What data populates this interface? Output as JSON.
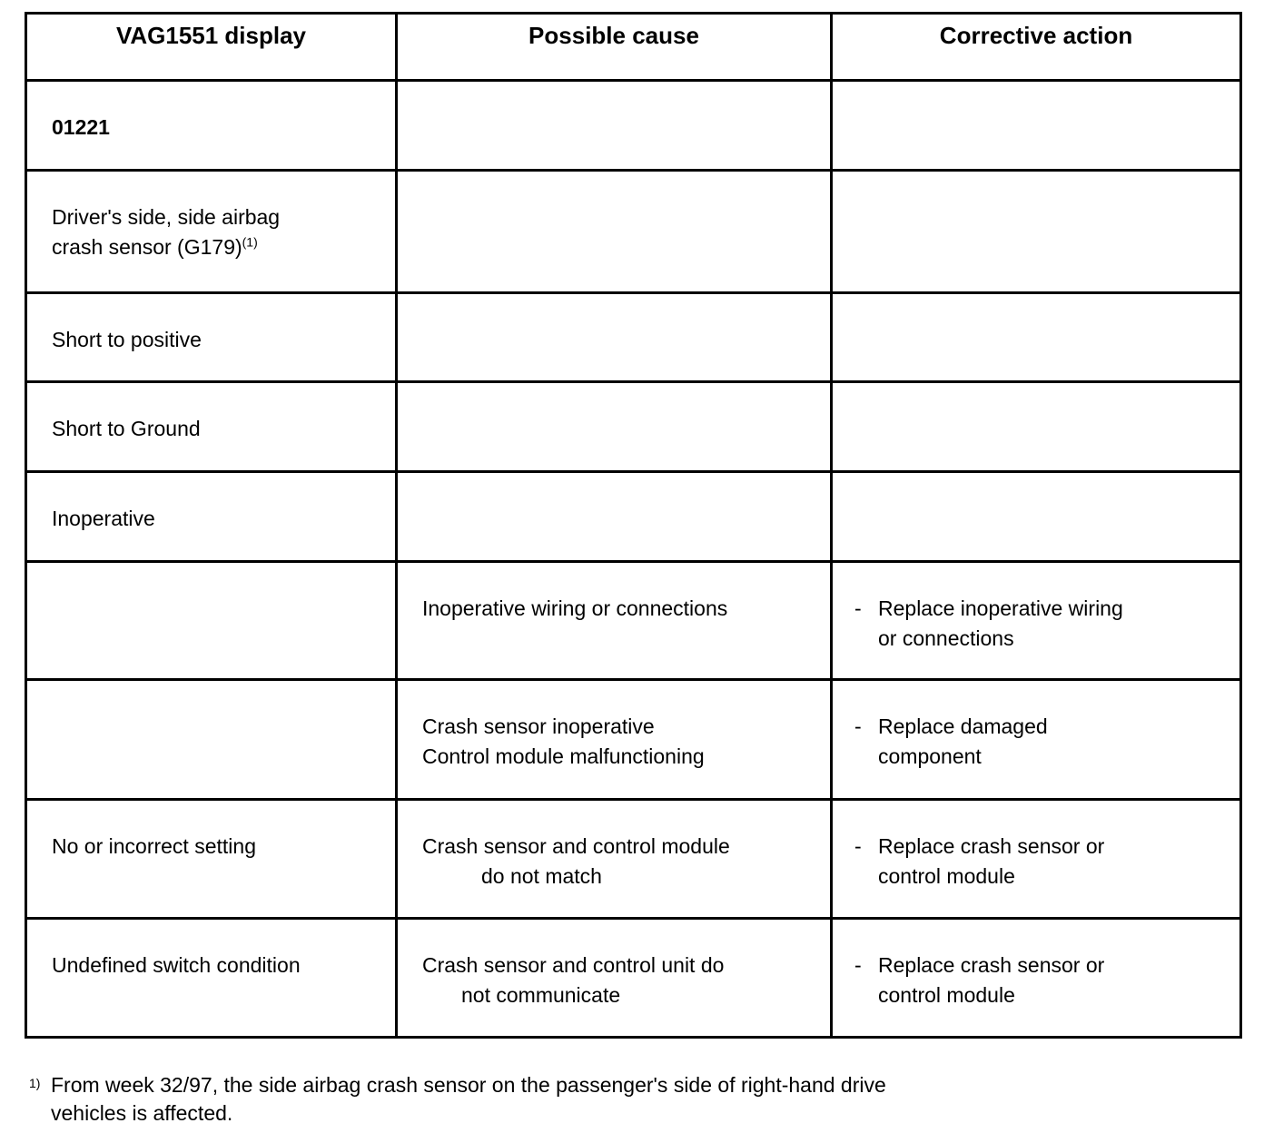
{
  "headers": [
    "VAG1551 display",
    "Possible cause",
    "Corrective action"
  ],
  "rows": [
    {
      "display": "01221",
      "display_sup": "",
      "cause": [],
      "action": []
    },
    {
      "display": "Driver's side, side airbag",
      "display2": "crash sensor (G179)",
      "display_sup": "(1)",
      "cause": [],
      "action": []
    },
    {
      "display": "Short to positive",
      "cause": [],
      "action": []
    },
    {
      "display": "Short to Ground",
      "cause": [],
      "action": []
    },
    {
      "display": "Inoperative",
      "cause": [],
      "action": []
    },
    {
      "display": "",
      "cause": [
        "Inoperative wiring or connections"
      ],
      "action": [
        "Replace inoperative wiring",
        "or connections"
      ]
    },
    {
      "display": "",
      "cause": [
        "Crash sensor inoperative",
        "Control module malfunctioning"
      ],
      "action": [
        "Replace damaged",
        "component"
      ]
    },
    {
      "display": "No or incorrect setting",
      "cause": [
        "Crash sensor and control module",
        "do not match"
      ],
      "action": [
        "Replace crash sensor or",
        "control module"
      ]
    },
    {
      "display": "Undefined switch condition",
      "cause": [
        "Crash sensor and control unit do",
        "not communicate"
      ],
      "action": [
        "Replace crash sensor or",
        "control module"
      ]
    }
  ],
  "bullet": "-",
  "footnote": {
    "marker": "1)",
    "line1": "From week 32/97, the side airbag crash sensor on the passenger's side of right-hand drive",
    "line2": "vehicles is affected."
  }
}
